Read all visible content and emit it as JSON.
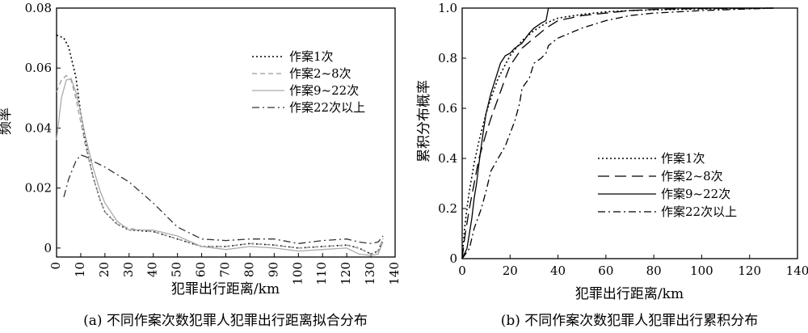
{
  "chart_data": [
    {
      "type": "line",
      "caption": "(a) 不同作案次数犯罪人犯罪出行距离拟合分布",
      "xlabel": "犯罪出行距离/km",
      "ylabel": "频率",
      "xlim": [
        0,
        140
      ],
      "ylim": [
        -0.003,
        0.08
      ],
      "xticks": [
        0,
        10,
        20,
        30,
        40,
        50,
        60,
        70,
        80,
        90,
        100,
        110,
        120,
        130,
        140
      ],
      "yticks": [
        0,
        0.02,
        0.04,
        0.06,
        0.08
      ],
      "ytick_labels": [
        "0",
        "0.02",
        "0.04",
        "0.06",
        "0.08"
      ],
      "legend_position": "upper-right",
      "series": [
        {
          "name": "作案1次",
          "style": "dotted",
          "color": "#000000",
          "x": [
            0,
            3,
            5,
            8,
            10,
            13,
            15,
            18,
            20,
            25,
            30,
            40,
            50,
            60,
            70,
            80,
            90,
            100,
            110,
            120,
            125,
            130,
            133,
            135
          ],
          "y": [
            0.071,
            0.07,
            0.067,
            0.057,
            0.045,
            0.031,
            0.024,
            0.016,
            0.012,
            0.008,
            0.006,
            0.0055,
            0.003,
            0.0005,
            0.0005,
            0.0015,
            0.001,
            0.0,
            0.0005,
            0.001,
            0.0,
            -0.002,
            -0.001,
            0.003
          ]
        },
        {
          "name": "作案2~8次",
          "style": "dashed",
          "color": "#999999",
          "x": [
            0,
            2,
            4,
            6,
            8,
            10,
            12,
            15,
            18,
            20,
            25,
            30,
            40,
            50,
            60,
            70,
            80,
            90,
            100,
            110,
            120,
            125,
            130,
            133,
            135
          ],
          "y": [
            0.052,
            0.056,
            0.0575,
            0.056,
            0.05,
            0.042,
            0.034,
            0.024,
            0.016,
            0.012,
            0.008,
            0.0065,
            0.0055,
            0.003,
            0.0005,
            0.0005,
            0.0015,
            0.001,
            0.0,
            0.0005,
            0.001,
            0.0,
            -0.002,
            -0.001,
            0.003
          ]
        },
        {
          "name": "作案9~22次",
          "style": "solid",
          "color": "#aaaaaa",
          "x": [
            0,
            2,
            4,
            6,
            8,
            10,
            12,
            15,
            18,
            20,
            25,
            30,
            40,
            50,
            60,
            70,
            80,
            90,
            100,
            110,
            120,
            125,
            130,
            133,
            135
          ],
          "y": [
            0.036,
            0.05,
            0.056,
            0.0565,
            0.052,
            0.045,
            0.037,
            0.027,
            0.019,
            0.015,
            0.009,
            0.006,
            0.006,
            0.004,
            0.0005,
            -0.0005,
            0.0005,
            0.0,
            -0.001,
            -0.0005,
            0.0,
            -0.002,
            -0.0025,
            -0.002,
            0.002
          ]
        },
        {
          "name": "作案22次以上",
          "style": "dashdot",
          "color": "#333333",
          "x": [
            3,
            5,
            8,
            10,
            12,
            15,
            20,
            30,
            40,
            50,
            60,
            70,
            80,
            90,
            100,
            110,
            120,
            125,
            130,
            133,
            135
          ],
          "y": [
            0.017,
            0.023,
            0.029,
            0.031,
            0.0305,
            0.029,
            0.027,
            0.022,
            0.015,
            0.007,
            0.003,
            0.0025,
            0.003,
            0.003,
            0.0015,
            0.0025,
            0.003,
            0.002,
            0.0015,
            0.002,
            0.004
          ]
        }
      ]
    },
    {
      "type": "line",
      "caption": "(b) 不同作案次数犯罪人犯罪出行累积分布",
      "xlabel": "犯罪出行距离/km",
      "ylabel": "累积分布概率",
      "xlim": [
        0,
        140
      ],
      "ylim": [
        0,
        1.0
      ],
      "xticks": [
        0,
        20,
        40,
        60,
        80,
        100,
        120,
        140
      ],
      "yticks": [
        0,
        0.2,
        0.4,
        0.6,
        0.8,
        1.0
      ],
      "ytick_labels": [
        "0",
        "0.2",
        "0.4",
        "0.6",
        "0.8",
        "1.0"
      ],
      "legend_position": "lower-right",
      "series": [
        {
          "name": "作案1次",
          "style": "dotted",
          "color": "#000000",
          "x": [
            0,
            1,
            2,
            3,
            5,
            7,
            10,
            12,
            15,
            20,
            25,
            30,
            35,
            40,
            50,
            60,
            70,
            80,
            100,
            120,
            130
          ],
          "y": [
            0,
            0.12,
            0.2,
            0.27,
            0.38,
            0.47,
            0.58,
            0.64,
            0.72,
            0.81,
            0.87,
            0.91,
            0.94,
            0.96,
            0.975,
            0.985,
            0.99,
            0.993,
            0.996,
            0.998,
            1.0
          ]
        },
        {
          "name": "作案2~8次",
          "style": "longdash",
          "color": "#000000",
          "x": [
            0,
            1,
            2,
            3,
            5,
            7,
            10,
            12,
            15,
            18,
            20,
            25,
            30,
            35,
            40,
            50,
            60,
            70,
            80,
            100,
            130
          ],
          "y": [
            0,
            0.08,
            0.14,
            0.2,
            0.3,
            0.4,
            0.5,
            0.56,
            0.64,
            0.72,
            0.77,
            0.84,
            0.88,
            0.92,
            0.95,
            0.97,
            0.98,
            0.99,
            0.995,
            0.998,
            1.0
          ]
        },
        {
          "name": "作案9~22次",
          "style": "solid",
          "color": "#000000",
          "x": [
            0,
            2,
            3,
            4,
            5,
            6,
            7,
            8,
            9,
            10,
            12,
            14,
            16,
            18,
            20,
            22,
            25,
            28,
            30,
            33,
            35,
            36,
            40,
            50,
            60,
            70,
            80,
            100,
            130
          ],
          "y": [
            0,
            0.04,
            0.1,
            0.16,
            0.24,
            0.3,
            0.38,
            0.45,
            0.52,
            0.58,
            0.66,
            0.72,
            0.78,
            0.81,
            0.82,
            0.84,
            0.86,
            0.9,
            0.92,
            0.94,
            0.95,
            1.0,
            1.0,
            1.0,
            1.0,
            1.0,
            1.0,
            1.0,
            1.0
          ]
        },
        {
          "name": "作案22次以上",
          "style": "dashdot",
          "color": "#000000",
          "x": [
            0,
            3,
            5,
            8,
            10,
            12,
            15,
            18,
            20,
            22,
            24,
            25,
            28,
            30,
            33,
            35,
            36,
            40,
            50,
            60,
            70,
            80,
            100,
            130
          ],
          "y": [
            0,
            0.04,
            0.12,
            0.2,
            0.27,
            0.35,
            0.4,
            0.45,
            0.5,
            0.55,
            0.62,
            0.68,
            0.72,
            0.78,
            0.8,
            0.82,
            0.85,
            0.88,
            0.92,
            0.95,
            0.97,
            0.98,
            0.99,
            1.0
          ]
        }
      ]
    }
  ]
}
